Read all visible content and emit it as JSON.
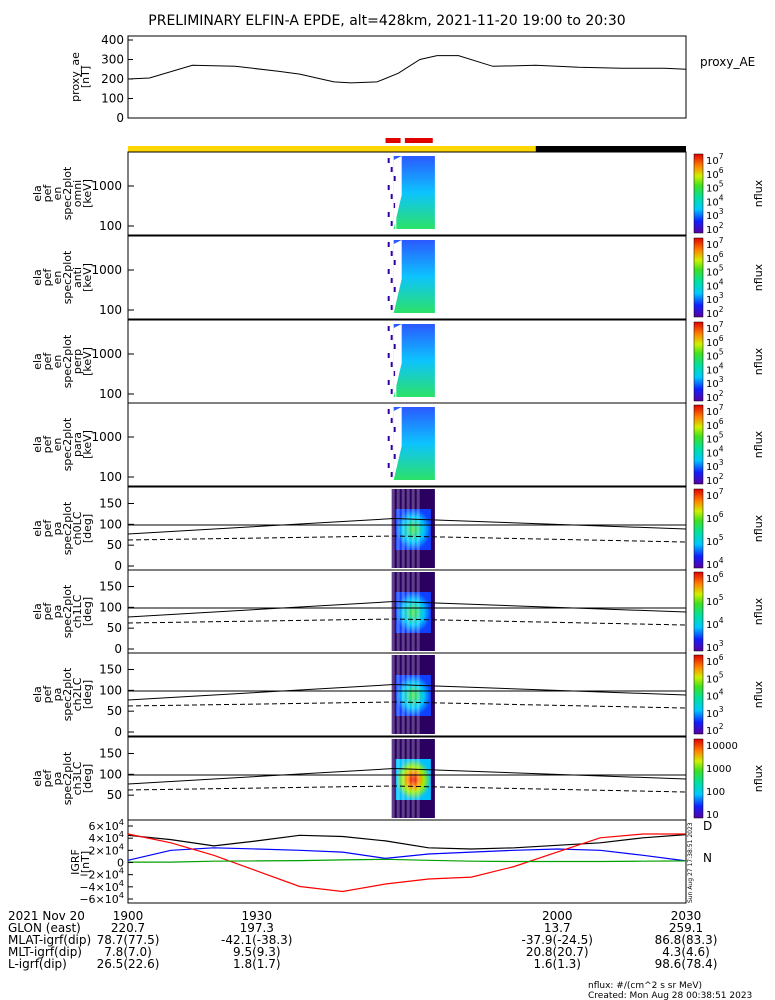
{
  "title": "PRELIMINARY ELFIN-A EPDE, alt=428km, 2021-11-20 19:00 to 20:30",
  "colors": {
    "sunlight_bar": "#ffd700",
    "eclipse_bar": "#000000",
    "science_marks": "#e00000",
    "bx": "#000000",
    "by": "#0000ff",
    "bz": "#ff0000",
    "bt": "#00a000"
  },
  "proxy_panel": {
    "ylabel": "proxy_ae [nT]",
    "legend": "proxy_AE",
    "yticks": [
      "400",
      "300",
      "200",
      "100",
      "0"
    ]
  },
  "spectrogram_panels": [
    {
      "ylabel": "ela pef en spec2plot omni [keV]",
      "yticks": [
        "1000",
        "100"
      ],
      "zlabel": "nflux",
      "zticks": [
        "10^7",
        "10^6",
        "10^5",
        "10^4",
        "10^3",
        "10^2"
      ]
    },
    {
      "ylabel": "ela pef en spec2plot anti [keV]",
      "yticks": [
        "1000",
        "100"
      ],
      "zlabel": "nflux",
      "zticks": [
        "10^7",
        "10^6",
        "10^5",
        "10^4",
        "10^3",
        "10^2"
      ]
    },
    {
      "ylabel": "ela pef en spec2plot perp [keV]",
      "yticks": [
        "1000",
        "100"
      ],
      "zlabel": "nflux",
      "zticks": [
        "10^7",
        "10^6",
        "10^5",
        "10^4",
        "10^3",
        "10^2"
      ]
    },
    {
      "ylabel": "ela pef en spec2plot para [keV]",
      "yticks": [
        "1000",
        "100"
      ],
      "zlabel": "nflux",
      "zticks": [
        "10^7",
        "10^6",
        "10^5",
        "10^4",
        "10^3",
        "10^2"
      ]
    },
    {
      "ylabel": "ela pef pa spec2plot ch0LC [deg]",
      "yticks": [
        "150",
        "100",
        "50",
        "0"
      ],
      "zlabel": "nflux",
      "zticks": [
        "10^7",
        "10^6",
        "10^5",
        "10^4"
      ]
    },
    {
      "ylabel": "ela pef pa spec2plot ch1LC [deg]",
      "yticks": [
        "150",
        "100",
        "50",
        "0"
      ],
      "zlabel": "nflux",
      "zticks": [
        "10^6",
        "10^5",
        "10^4",
        "10^3"
      ]
    },
    {
      "ylabel": "ela pef pa spec2plot ch2LC [deg]",
      "yticks": [
        "150",
        "100",
        "50",
        "0"
      ],
      "zlabel": "nflux",
      "zticks": [
        "10^6",
        "10^5",
        "10^4",
        "10^3",
        "10^2"
      ]
    },
    {
      "ylabel": "ela pef pa spec2plot ch3LC [deg]",
      "yticks": [
        "150",
        "100",
        "50"
      ],
      "zlabel": "nflux",
      "zticks": [
        "10000",
        "1000",
        "100",
        "10"
      ]
    }
  ],
  "igrf_panel": {
    "ylabel": "IGRF [nT]",
    "yticks": [
      "6×10^4",
      "4×10^4",
      "2×10^4",
      "0",
      "−2×10^4",
      "−4×10^4",
      "−6×10^4"
    ],
    "legend": [
      "D",
      "N"
    ],
    "side_stamp": "Sun Aug 27 17:38:51 2023"
  },
  "orbit_table": {
    "rows": [
      {
        "label": "2021 Nov 20",
        "values": [
          "1900",
          "1930",
          "2000",
          "2030"
        ]
      },
      {
        "label": "GLON (east)",
        "values": [
          "220.7",
          "197.3",
          "13.7",
          "259.1"
        ]
      },
      {
        "label": "MLAT-igrf(dip)",
        "values": [
          "78.7(77.5)",
          "-42.1(-38.3)",
          "-37.9(-24.5)",
          "86.8(83.3)"
        ]
      },
      {
        "label": "MLT-igrf(dip)",
        "values": [
          "7.8(7.0)",
          "9.5(9.3)",
          "20.8(20.7)",
          "4.3(4.6)"
        ]
      },
      {
        "label": "L-igrf(dip)",
        "values": [
          "26.5(22.6)",
          "1.8(1.7)",
          "1.6(1.3)",
          "98.6(78.4)"
        ]
      }
    ]
  },
  "footer": {
    "units": "nflux: #/(cm^2 s sr MeV)",
    "created": "Created: Mon Aug 28 00:38:51 2023"
  },
  "chart_data": [
    {
      "type": "line",
      "name": "proxy_AE",
      "x_range": [
        1900,
        2030
      ],
      "ylim": [
        0,
        400
      ],
      "x": [
        1900,
        1905,
        1915,
        1925,
        1935,
        1940,
        1945,
        1948,
        1952,
        1958,
        1963,
        1968,
        1972,
        1977,
        1985,
        1995,
        2005,
        2015,
        2025,
        2030
      ],
      "y": [
        200,
        205,
        270,
        265,
        240,
        225,
        200,
        185,
        180,
        185,
        230,
        300,
        320,
        320,
        265,
        270,
        260,
        255,
        255,
        250
      ]
    },
    {
      "type": "line",
      "name": "IGRF",
      "ylim": [
        -60000,
        60000
      ],
      "x": [
        1900,
        1910,
        1920,
        1930,
        1940,
        1950,
        1960,
        1970,
        1980,
        1990,
        2000,
        2010,
        2020,
        2030
      ],
      "series": [
        {
          "name": "black",
          "values": [
            42000,
            35000,
            25000,
            33000,
            42000,
            40000,
            33000,
            22000,
            20000,
            22000,
            26000,
            30000,
            38000,
            43000
          ]
        },
        {
          "name": "blue",
          "values": [
            2000,
            18000,
            22000,
            20000,
            18000,
            15000,
            5000,
            12000,
            15000,
            18000,
            20000,
            18000,
            10000,
            1000
          ]
        },
        {
          "name": "red",
          "values": [
            44000,
            30000,
            10000,
            -15000,
            -40000,
            -48000,
            -36000,
            -28000,
            -25000,
            -8000,
            15000,
            38000,
            44000,
            44000
          ]
        },
        {
          "name": "green",
          "values": [
            -1000,
            -1000,
            500,
            1000,
            1500,
            2500,
            3500,
            2000,
            500,
            0,
            0,
            0,
            500,
            1000
          ]
        }
      ]
    }
  ]
}
